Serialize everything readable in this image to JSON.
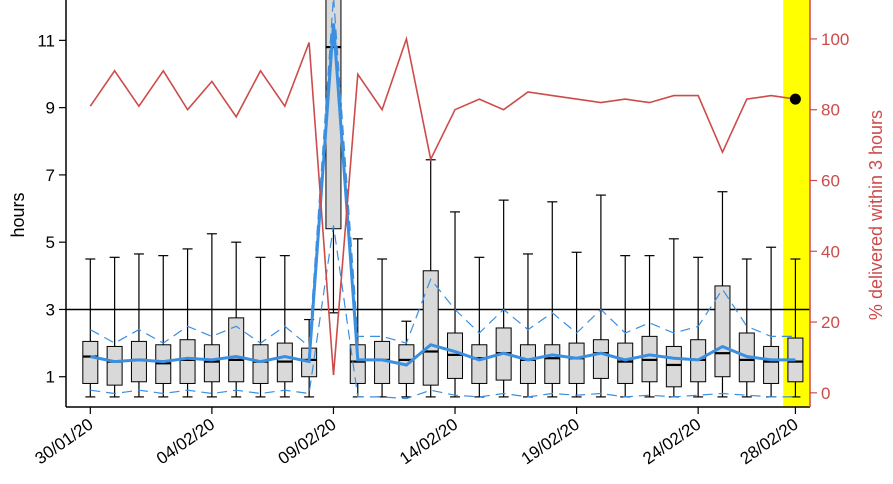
{
  "chart_data": {
    "type": "box",
    "title": "",
    "ylabel_left": "hours",
    "ylabel_right": "% delivered within 3 hours",
    "y_left_ticks": [
      1,
      3,
      5,
      7,
      9,
      11
    ],
    "y_left_range": [
      0.1,
      12.2
    ],
    "y_right_ticks": [
      0,
      20,
      40,
      60,
      80,
      100
    ],
    "y_right_range": [
      -4,
      111
    ],
    "x_tick_labels": [
      "30/01/20",
      "04/02/20",
      "09/02/20",
      "14/02/20",
      "19/02/20",
      "24/02/20",
      "28/02/20"
    ],
    "x_tick_days": [
      0,
      5,
      10,
      15,
      20,
      25,
      29
    ],
    "x_range": [
      -1.0,
      29.6
    ],
    "reference_line_hours": 3,
    "highlight_day": 29,
    "colors": {
      "box_fill": "#d9d9d9",
      "median_line": "#3b8fe0",
      "percent_line": "#cd4b4b",
      "highlight": "#ffff00",
      "right_axis": "#cd4b4b"
    },
    "boxes": [
      {
        "day": 0,
        "whisker_low": 0.4,
        "q1": 0.8,
        "median": 1.6,
        "q3": 2.05,
        "whisker_high": 4.5
      },
      {
        "day": 1,
        "whisker_low": 0.4,
        "q1": 0.75,
        "median": 1.45,
        "q3": 1.9,
        "whisker_high": 4.55
      },
      {
        "day": 2,
        "whisker_low": 0.4,
        "q1": 0.85,
        "median": 1.5,
        "q3": 2.05,
        "whisker_high": 4.65
      },
      {
        "day": 3,
        "whisker_low": 0.4,
        "q1": 0.8,
        "median": 1.4,
        "q3": 1.95,
        "whisker_high": 4.6
      },
      {
        "day": 4,
        "whisker_low": 0.4,
        "q1": 0.8,
        "median": 1.5,
        "q3": 2.1,
        "whisker_high": 4.8
      },
      {
        "day": 5,
        "whisker_low": 0.4,
        "q1": 0.85,
        "median": 1.45,
        "q3": 1.95,
        "whisker_high": 5.25
      },
      {
        "day": 6,
        "whisker_low": 0.4,
        "q1": 0.85,
        "median": 1.5,
        "q3": 2.75,
        "whisker_high": 5.0
      },
      {
        "day": 7,
        "whisker_low": 0.4,
        "q1": 0.8,
        "median": 1.45,
        "q3": 1.95,
        "whisker_high": 4.55
      },
      {
        "day": 8,
        "whisker_low": 0.4,
        "q1": 0.85,
        "median": 1.45,
        "q3": 2.0,
        "whisker_high": 4.6
      },
      {
        "day": 9,
        "whisker_low": 0.4,
        "q1": 1.0,
        "median": 1.5,
        "q3": 1.85,
        "whisker_high": 2.7
      },
      {
        "day": 10,
        "whisker_low": 2.9,
        "q1": 5.4,
        "median": 10.8,
        "q3": 12.5,
        "whisker_high": 12.5
      },
      {
        "day": 11,
        "whisker_low": 0.4,
        "q1": 0.8,
        "median": 1.45,
        "q3": 1.95,
        "whisker_high": 5.1
      },
      {
        "day": 12,
        "whisker_low": 0.4,
        "q1": 0.8,
        "median": 1.5,
        "q3": 2.05,
        "whisker_high": 4.5
      },
      {
        "day": 13,
        "whisker_low": 0.4,
        "q1": 0.8,
        "median": 1.5,
        "q3": 1.95,
        "whisker_high": 2.65
      },
      {
        "day": 14,
        "whisker_low": 0.4,
        "q1": 0.75,
        "median": 1.75,
        "q3": 4.15,
        "whisker_high": 7.45
      },
      {
        "day": 15,
        "whisker_low": 0.4,
        "q1": 0.95,
        "median": 1.65,
        "q3": 2.3,
        "whisker_high": 5.9
      },
      {
        "day": 16,
        "whisker_low": 0.4,
        "q1": 0.8,
        "median": 1.55,
        "q3": 1.95,
        "whisker_high": 4.55
      },
      {
        "day": 17,
        "whisker_low": 0.4,
        "q1": 0.9,
        "median": 1.7,
        "q3": 2.45,
        "whisker_high": 6.25
      },
      {
        "day": 18,
        "whisker_low": 0.4,
        "q1": 0.8,
        "median": 1.5,
        "q3": 1.95,
        "whisker_high": 4.65
      },
      {
        "day": 19,
        "whisker_low": 0.4,
        "q1": 0.8,
        "median": 1.55,
        "q3": 1.95,
        "whisker_high": 6.2
      },
      {
        "day": 20,
        "whisker_low": 0.4,
        "q1": 0.8,
        "median": 1.55,
        "q3": 2.0,
        "whisker_high": 4.7
      },
      {
        "day": 21,
        "whisker_low": 0.4,
        "q1": 0.95,
        "median": 1.7,
        "q3": 2.1,
        "whisker_high": 6.4
      },
      {
        "day": 22,
        "whisker_low": 0.4,
        "q1": 0.8,
        "median": 1.45,
        "q3": 2.0,
        "whisker_high": 4.6
      },
      {
        "day": 23,
        "whisker_low": 0.4,
        "q1": 0.85,
        "median": 1.5,
        "q3": 2.2,
        "whisker_high": 4.6
      },
      {
        "day": 24,
        "whisker_low": 0.4,
        "q1": 0.7,
        "median": 1.35,
        "q3": 1.9,
        "whisker_high": 5.1
      },
      {
        "day": 25,
        "whisker_low": 0.4,
        "q1": 0.85,
        "median": 1.5,
        "q3": 2.1,
        "whisker_high": 4.55
      },
      {
        "day": 26,
        "whisker_low": 0.4,
        "q1": 1.0,
        "median": 1.7,
        "q3": 3.7,
        "whisker_high": 6.5
      },
      {
        "day": 27,
        "whisker_low": 0.4,
        "q1": 0.85,
        "median": 1.5,
        "q3": 2.3,
        "whisker_high": 4.5
      },
      {
        "day": 28,
        "whisker_low": 0.4,
        "q1": 0.8,
        "median": 1.45,
        "q3": 1.9,
        "whisker_high": 4.85
      },
      {
        "day": 29,
        "whisker_low": 0.4,
        "q1": 0.85,
        "median": 1.45,
        "q3": 2.15,
        "whisker_high": 4.5
      }
    ],
    "series": [
      {
        "role": "median_hours",
        "axis": "left",
        "style": "solid",
        "x": [
          0,
          1,
          2,
          3,
          4,
          5,
          6,
          7,
          8,
          9,
          10,
          11,
          12,
          13,
          14,
          15,
          16,
          17,
          18,
          19,
          20,
          21,
          22,
          23,
          24,
          25,
          26,
          27,
          28,
          29
        ],
        "y": [
          1.6,
          1.45,
          1.5,
          1.45,
          1.55,
          1.5,
          1.6,
          1.45,
          1.6,
          1.45,
          11.5,
          1.5,
          1.5,
          1.35,
          1.95,
          1.75,
          1.5,
          1.7,
          1.5,
          1.65,
          1.55,
          1.7,
          1.5,
          1.65,
          1.55,
          1.5,
          1.9,
          1.6,
          1.5,
          1.5
        ]
      },
      {
        "role": "upper_band_hours",
        "axis": "left",
        "style": "dashed",
        "x": [
          0,
          1,
          2,
          3,
          4,
          5,
          6,
          7,
          8,
          9,
          10,
          11,
          12,
          13,
          14,
          15,
          16,
          17,
          18,
          19,
          20,
          21,
          22,
          23,
          24,
          25,
          26,
          27,
          28,
          29
        ],
        "y": [
          2.4,
          2.0,
          2.4,
          2.0,
          2.5,
          2.2,
          2.5,
          2.0,
          2.5,
          1.9,
          12.3,
          2.2,
          2.2,
          2.0,
          3.9,
          3.0,
          2.3,
          3.0,
          2.4,
          2.9,
          2.3,
          3.0,
          2.3,
          2.6,
          2.3,
          2.5,
          3.6,
          2.5,
          2.2,
          2.2
        ]
      },
      {
        "role": "lower_band_hours",
        "axis": "left",
        "style": "dashed",
        "x": [
          0,
          1,
          2,
          3,
          4,
          5,
          6,
          7,
          8,
          9,
          10,
          11,
          12,
          13,
          14,
          15,
          16,
          17,
          18,
          19,
          20,
          21,
          22,
          23,
          24,
          25,
          26,
          27,
          28,
          29
        ],
        "y": [
          0.6,
          0.5,
          0.6,
          0.5,
          0.6,
          0.5,
          0.6,
          0.5,
          0.6,
          0.5,
          5.5,
          0.4,
          0.4,
          0.35,
          0.6,
          0.45,
          0.4,
          0.5,
          0.4,
          0.5,
          0.45,
          0.5,
          0.4,
          0.45,
          0.4,
          0.45,
          0.5,
          0.45,
          0.4,
          0.4
        ]
      },
      {
        "role": "percent_within_3_hours",
        "axis": "right",
        "style": "solid",
        "x": [
          0,
          1,
          2,
          3,
          4,
          5,
          6,
          7,
          8,
          9,
          10,
          11,
          12,
          13,
          14,
          15,
          16,
          17,
          18,
          19,
          20,
          21,
          22,
          23,
          24,
          25,
          26,
          27,
          28,
          29
        ],
        "y": [
          81,
          91,
          81,
          91,
          80,
          88,
          78,
          91,
          81,
          99,
          5,
          90,
          80,
          100,
          66,
          80,
          83,
          80,
          85,
          84,
          83,
          82,
          83,
          82,
          84,
          84,
          68,
          83,
          84,
          83
        ]
      }
    ],
    "highlight_point": {
      "day": 29,
      "percent": 83
    }
  }
}
